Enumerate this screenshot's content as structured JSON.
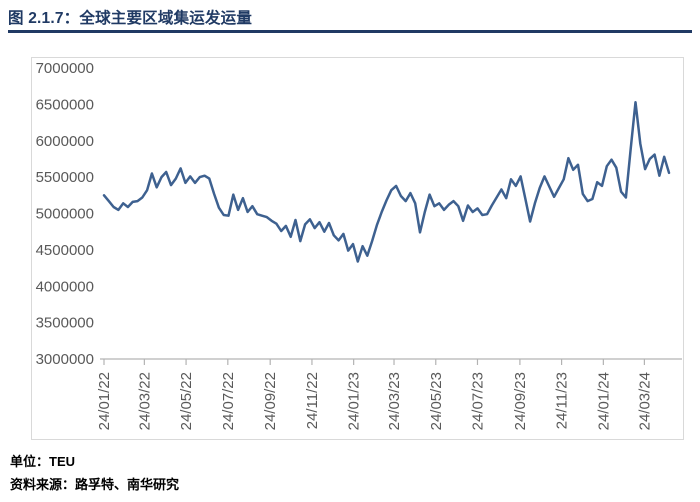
{
  "header": {
    "title": "图 2.1.7：全球主要区域集运发运量"
  },
  "footer": {
    "unit_label": "单位：TEU",
    "source_label": "资料来源：路孚特、南华研究"
  },
  "colors": {
    "title": "#203a64",
    "divider": "#203a64",
    "line": "#3e6190",
    "axis": "#b3b3b3",
    "tick_text": "#595959",
    "chart_border": "#d9d9d9",
    "background": "#ffffff"
  },
  "chart_data": {
    "type": "line",
    "title": "全球主要区域集运发运量",
    "unit": "TEU",
    "frequency": "weekly",
    "grid": false,
    "legend_position": "none",
    "ylim": [
      3000000,
      7000000
    ],
    "yticks": [
      3000000,
      3500000,
      4000000,
      4500000,
      5000000,
      5500000,
      6000000,
      6500000,
      7000000
    ],
    "xticks": [
      {
        "label": "24/01/22",
        "index": 0
      },
      {
        "label": "24/03/22",
        "index": 8.43
      },
      {
        "label": "24/05/22",
        "index": 17.14
      },
      {
        "label": "24/07/22",
        "index": 25.86
      },
      {
        "label": "24/09/22",
        "index": 34.71
      },
      {
        "label": "24/11/22",
        "index": 43.43
      },
      {
        "label": "24/01/23",
        "index": 52.14
      },
      {
        "label": "24/03/23",
        "index": 60.57
      },
      {
        "label": "24/05/23",
        "index": 69.29
      },
      {
        "label": "24/07/23",
        "index": 78.0
      },
      {
        "label": "24/09/23",
        "index": 86.86
      },
      {
        "label": "24/11/23",
        "index": 95.57
      },
      {
        "label": "24/01/24",
        "index": 104.29
      },
      {
        "label": "24/03/24",
        "index": 112.86
      }
    ],
    "series": [
      {
        "values": [
          5250000,
          5170000,
          5090000,
          5050000,
          5140000,
          5090000,
          5160000,
          5170000,
          5220000,
          5320000,
          5550000,
          5360000,
          5500000,
          5570000,
          5390000,
          5480000,
          5620000,
          5420000,
          5510000,
          5420000,
          5500000,
          5520000,
          5480000,
          5270000,
          5080000,
          4980000,
          4970000,
          5260000,
          5050000,
          5210000,
          5020000,
          5100000,
          4990000,
          4970000,
          4950000,
          4900000,
          4860000,
          4760000,
          4830000,
          4680000,
          4910000,
          4620000,
          4850000,
          4920000,
          4800000,
          4880000,
          4750000,
          4870000,
          4700000,
          4630000,
          4720000,
          4490000,
          4580000,
          4340000,
          4550000,
          4420000,
          4620000,
          4840000,
          5020000,
          5180000,
          5320000,
          5380000,
          5240000,
          5170000,
          5280000,
          5140000,
          4740000,
          5020000,
          5260000,
          5100000,
          5140000,
          5050000,
          5120000,
          5170000,
          5100000,
          4900000,
          5110000,
          5020000,
          5070000,
          4980000,
          4990000,
          5110000,
          5220000,
          5330000,
          5210000,
          5470000,
          5380000,
          5510000,
          5200000,
          4890000,
          5140000,
          5350000,
          5510000,
          5370000,
          5230000,
          5350000,
          5470000,
          5760000,
          5600000,
          5670000,
          5270000,
          5170000,
          5200000,
          5430000,
          5380000,
          5650000,
          5740000,
          5630000,
          5300000,
          5220000,
          5890000,
          6530000,
          5960000,
          5610000,
          5750000,
          5810000,
          5520000,
          5780000,
          5560000
        ]
      }
    ]
  }
}
